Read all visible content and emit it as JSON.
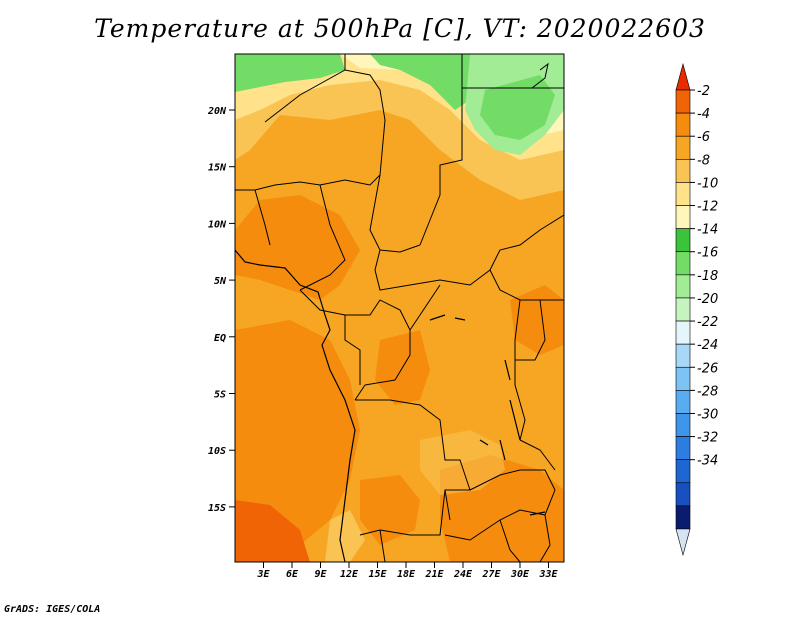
{
  "title": "Temperature at 500hPa [C], VT: 2020022603",
  "credit": "GrADS: IGES/COLA",
  "map": {
    "lat_labels": [
      "20N",
      "15N",
      "10N",
      "5N",
      "EQ",
      "5S",
      "10S",
      "15S"
    ],
    "lon_labels": [
      "3E",
      "6E",
      "9E",
      "12E",
      "15E",
      "18E",
      "21E",
      "24E",
      "27E",
      "30E",
      "33E"
    ]
  },
  "colorbar": {
    "labels": [
      "-2",
      "-4",
      "-6",
      "-8",
      "-10",
      "-12",
      "-14",
      "-16",
      "-18",
      "-20",
      "-22",
      "-24",
      "-26",
      "-28",
      "-30",
      "-32",
      "-34"
    ],
    "colors": [
      "#d7e3f2",
      "#0a1c6e",
      "#1850c0",
      "#1e66d4",
      "#2b7ee0",
      "#3f95ea",
      "#5aacf0",
      "#7dc3f4",
      "#a7d8f8",
      "#e4f6fb",
      "#c6f4bf",
      "#a1ec94",
      "#72dc66",
      "#3cc33c",
      "#fff6bc",
      "#ffe28a",
      "#f9c453",
      "#f7a624",
      "#f58c0e",
      "#f06406",
      "#e92c00"
    ]
  }
}
